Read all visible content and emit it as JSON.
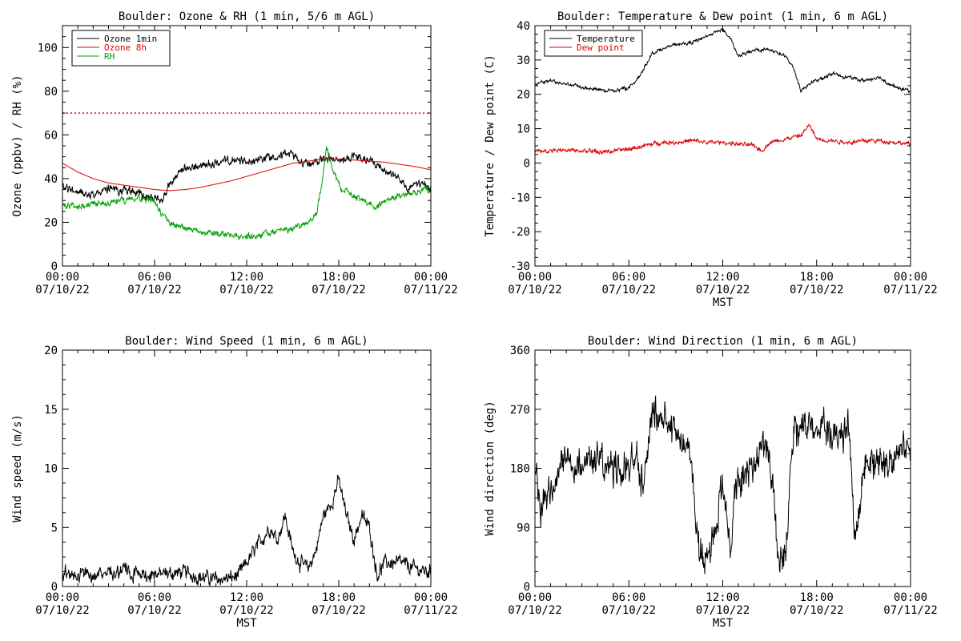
{
  "colors": {
    "black": "#000000",
    "red": "#e00000",
    "green": "#00a000"
  },
  "chart_data": [
    {
      "type": "line",
      "title": "Boulder: Ozone & RH (1 min, 5/6 m AGL)",
      "xlabel": "",
      "ylabel": "Ozone (ppbv) / RH (%)",
      "xlim": [
        0,
        24
      ],
      "ylim": [
        0,
        110
      ],
      "x_tick_labels": [
        [
          "00:00",
          "07/10/22"
        ],
        [
          "06:00",
          "07/10/22"
        ],
        [
          "12:00",
          "07/10/22"
        ],
        [
          "18:00",
          "07/10/22"
        ],
        [
          "00:00",
          "07/11/22"
        ]
      ],
      "y_ticks": [
        0,
        20,
        40,
        60,
        80,
        100
      ],
      "reference_line": {
        "y": 70,
        "style": "dotted",
        "color": "#e00000"
      },
      "legend_position": "top-left",
      "series": [
        {
          "name": "Ozone 1min",
          "color": "#000000",
          "noise": 1.6,
          "x": [
            0,
            1,
            2,
            3,
            4,
            5,
            5.8,
            6.5,
            7,
            8,
            9,
            10,
            11,
            12,
            13,
            14,
            15,
            15.5,
            16,
            17,
            18,
            19,
            20,
            21,
            22,
            22.5,
            23,
            24
          ],
          "y": [
            36,
            34,
            33,
            35,
            35,
            33,
            31,
            30,
            38,
            44,
            46,
            47,
            48,
            48,
            49,
            51,
            51,
            48,
            47,
            49,
            48,
            50,
            48,
            44,
            40,
            34,
            38,
            36
          ]
        },
        {
          "name": "Ozone 8h",
          "color": "#e00000",
          "noise": 0,
          "x": [
            0,
            1,
            2,
            3,
            4,
            5,
            6,
            7,
            8,
            9,
            10,
            11,
            12,
            13,
            14,
            15,
            16,
            17,
            18,
            19,
            20,
            21,
            22,
            23,
            24
          ],
          "y": [
            47,
            43,
            40,
            38,
            37,
            36,
            35,
            34.5,
            35,
            36,
            37.5,
            39,
            41,
            43,
            45,
            47,
            48,
            49,
            49,
            48.5,
            48,
            47.5,
            46.5,
            45.5,
            44
          ]
        },
        {
          "name": "RH",
          "color": "#00a000",
          "noise": 1.2,
          "x": [
            0,
            1,
            2,
            3,
            4,
            5,
            6,
            6.5,
            7,
            8,
            9,
            10,
            11,
            12,
            13,
            14,
            15,
            16,
            16.6,
            17,
            17.2,
            17.4,
            17.6,
            18,
            19,
            20,
            20.5,
            21,
            22,
            23,
            24
          ],
          "y": [
            28,
            27,
            28,
            29,
            30,
            31,
            30,
            23,
            20,
            17,
            16,
            15,
            14,
            13,
            14,
            16,
            17,
            20,
            25,
            42,
            55,
            50,
            44,
            37,
            32,
            28,
            27,
            30,
            32,
            34,
            35
          ]
        }
      ]
    },
    {
      "type": "line",
      "title": "Boulder: Temperature & Dew point (1 min, 6 m AGL)",
      "xlabel": "MST",
      "ylabel": "Temperature / Dew point (C)",
      "xlim": [
        0,
        24
      ],
      "ylim": [
        -30,
        40
      ],
      "x_tick_labels": [
        [
          "00:00",
          "07/10/22"
        ],
        [
          "06:00",
          "07/10/22"
        ],
        [
          "12:00",
          "07/10/22"
        ],
        [
          "18:00",
          "07/10/22"
        ],
        [
          "00:00",
          "07/11/22"
        ]
      ],
      "y_ticks": [
        -30,
        -20,
        -10,
        0,
        10,
        20,
        30,
        40
      ],
      "legend_position": "top-left",
      "series": [
        {
          "name": "Temperature",
          "color": "#000000",
          "noise": 0.4,
          "x": [
            0,
            1,
            2,
            3,
            4,
            5,
            6,
            6.5,
            7,
            7.5,
            8,
            9,
            10,
            11,
            11.5,
            12,
            12.5,
            13,
            13.5,
            14,
            15,
            16,
            16.5,
            17,
            17.5,
            18,
            19,
            20,
            21,
            22,
            23,
            24
          ],
          "y": [
            23,
            24,
            23,
            22,
            21.5,
            21,
            22,
            24,
            28,
            32,
            33,
            34.5,
            35,
            37,
            38,
            39,
            36,
            31,
            32,
            33,
            33,
            31,
            28,
            21,
            23,
            24,
            26,
            25,
            24,
            25,
            22,
            21
          ]
        },
        {
          "name": "Dew point",
          "color": "#e00000",
          "noise": 0.5,
          "x": [
            0,
            1,
            2,
            3,
            4,
            5,
            6,
            7,
            8,
            9,
            10,
            11,
            12,
            13,
            14,
            14.5,
            15,
            16,
            17,
            17.5,
            17.8,
            18,
            19,
            20,
            21,
            22,
            23,
            24
          ],
          "y": [
            3.5,
            3.5,
            3.8,
            3.5,
            3.2,
            3.5,
            4,
            5,
            6,
            6,
            6.5,
            6,
            6,
            5.5,
            5,
            3.5,
            6,
            7,
            8,
            11,
            9,
            7,
            6.5,
            6,
            6.5,
            6.5,
            6,
            5.5
          ]
        }
      ]
    },
    {
      "type": "line",
      "title": "Boulder: Wind Speed (1 min, 6 m AGL)",
      "xlabel": "MST",
      "ylabel": "Wind speed (m/s)",
      "xlim": [
        0,
        24
      ],
      "ylim": [
        0,
        20
      ],
      "x_tick_labels": [
        [
          "00:00",
          "07/10/22"
        ],
        [
          "06:00",
          "07/10/22"
        ],
        [
          "12:00",
          "07/10/22"
        ],
        [
          "18:00",
          "07/10/22"
        ],
        [
          "00:00",
          "07/11/22"
        ]
      ],
      "y_ticks": [
        0,
        5,
        10,
        15,
        20
      ],
      "series": [
        {
          "name": "",
          "color": "#000000",
          "noise": 0.5,
          "clip_min": 0,
          "x": [
            0,
            2,
            4,
            6,
            7,
            8,
            9,
            10,
            11,
            11.5,
            12,
            12.5,
            13,
            13.5,
            14,
            14.5,
            15,
            15.5,
            16,
            16.5,
            17,
            17.5,
            18,
            18.5,
            19,
            19.5,
            20,
            20.5,
            21,
            22,
            23,
            24
          ],
          "y": [
            1.2,
            1,
            1.3,
            1,
            1.1,
            1.2,
            0.8,
            0.6,
            0.7,
            1,
            2,
            3,
            4,
            5,
            4,
            6,
            3,
            2,
            1.5,
            3,
            6,
            7,
            9,
            6,
            4,
            6,
            5,
            1,
            2,
            2,
            1.5,
            1.2
          ]
        }
      ]
    },
    {
      "type": "line",
      "title": "Boulder: Wind Direction (1 min, 6 m AGL)",
      "xlabel": "MST",
      "ylabel": "Wind direction (deg)",
      "xlim": [
        0,
        24
      ],
      "ylim": [
        0,
        360
      ],
      "x_tick_labels": [
        [
          "00:00",
          "07/10/22"
        ],
        [
          "06:00",
          "07/10/22"
        ],
        [
          "12:00",
          "07/10/22"
        ],
        [
          "18:00",
          "07/10/22"
        ],
        [
          "00:00",
          "07/11/22"
        ]
      ],
      "y_ticks": [
        0,
        90,
        180,
        270,
        360
      ],
      "series": [
        {
          "name": "",
          "color": "#000000",
          "noise": 22,
          "clip_min": 0,
          "clip_max": 360,
          "x": [
            0,
            0.5,
            1,
            2,
            3,
            4,
            5,
            6,
            7,
            7.5,
            8,
            8.5,
            9,
            9.5,
            10,
            10.5,
            11,
            11.5,
            12,
            12.5,
            13,
            13.5,
            14,
            14.5,
            15,
            15.5,
            16,
            16.5,
            17,
            18,
            19,
            19.5,
            20,
            20.5,
            21,
            22,
            23,
            24
          ],
          "y": [
            170,
            120,
            160,
            190,
            185,
            195,
            180,
            190,
            175,
            260,
            255,
            240,
            230,
            220,
            190,
            60,
            40,
            90,
            160,
            60,
            170,
            175,
            180,
            220,
            200,
            60,
            50,
            230,
            240,
            245,
            235,
            220,
            240,
            60,
            180,
            190,
            210,
            200
          ]
        }
      ]
    }
  ]
}
